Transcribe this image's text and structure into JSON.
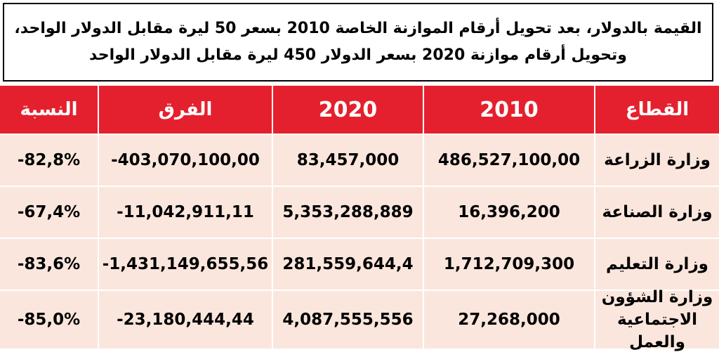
{
  "title": "القيمة بالدولار، بعد تحويل أرقام الموازنة الخاصة 2010 بسعر 50 ليرة مقابل الدولار الواحد، وتحويل أرقام موازنة 2020 بسعر الدولار 450 ليرة مقابل الدولار الواحد",
  "table": {
    "headers": {
      "sector": "القطاع",
      "y2010": "2010",
      "y2020": "2020",
      "diff": "الفرق",
      "pct": "النسبة"
    },
    "rows": [
      {
        "sector": "وزارة الزراعة",
        "y2010": "486,527,100,00",
        "y2020": "83,457,000",
        "diff": "-403,070,100,00",
        "pct": "-82,8%"
      },
      {
        "sector": "وزارة الصناعة",
        "y2010": "16,396,200",
        "y2020": "5,353,288,889",
        "diff": "-11,042,911,11",
        "pct": "-67,4%"
      },
      {
        "sector": "وزارة التعليم",
        "y2010": "1,712,709,300",
        "y2020": "281,559,644,4",
        "diff": "-1,431,149,655,56",
        "pct": "-83,6%"
      },
      {
        "sector": "وزارة الشؤون الاجتماعية والعمل",
        "y2010": "27,268,000",
        "y2020": "4,087,555,556",
        "diff": "-23,180,444,44",
        "pct": "-85,0%"
      }
    ]
  }
}
